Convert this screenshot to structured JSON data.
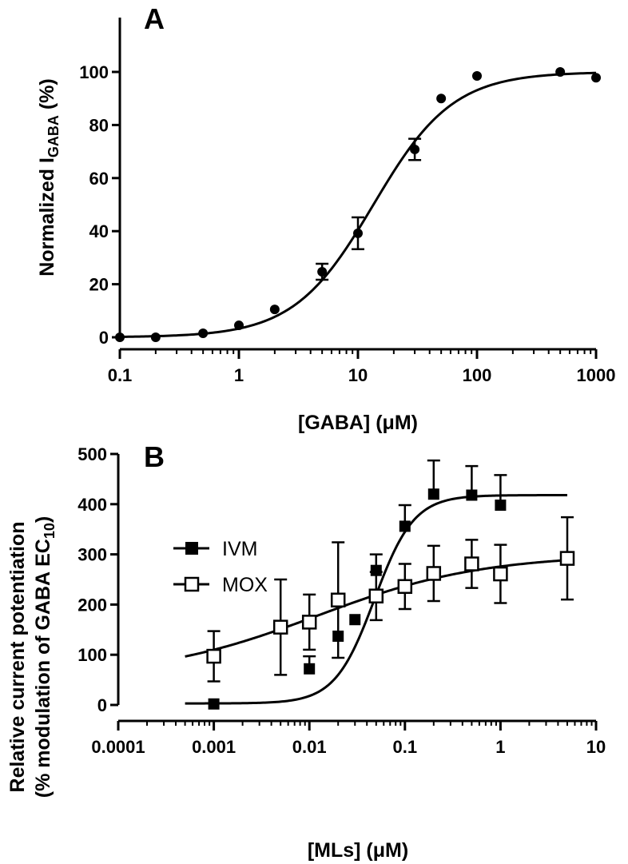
{
  "chart_data": [
    {
      "type": "scatter",
      "panel_label": "A",
      "xlabel": "[GABA] (μM)",
      "ylabel": {
        "main": "Normalized I",
        "sub": "GABA",
        "suffix": " (%)"
      },
      "xscale": "log",
      "xlim": [
        0.1,
        1000
      ],
      "ylim": [
        0,
        100
      ],
      "x_ticks": [
        0.1,
        1,
        10,
        100,
        1000
      ],
      "x_tick_labels": [
        "0.1",
        "1",
        "10",
        "100",
        "1000"
      ],
      "y_ticks": [
        0,
        20,
        40,
        60,
        80,
        100
      ],
      "y_tick_labels": [
        "0",
        "20",
        "40",
        "60",
        "80",
        "100"
      ],
      "grid": false,
      "series": [
        {
          "marker": "filled-circle",
          "x": [
            0.1,
            0.2,
            0.5,
            1,
            2,
            5,
            10,
            30,
            50,
            100,
            500,
            1000
          ],
          "y": [
            0,
            0,
            1.5,
            4.5,
            10.5,
            24.7,
            39.2,
            70.8,
            90,
            98.5,
            100,
            97.8
          ],
          "err": [
            0,
            0,
            0,
            0,
            0,
            3,
            6,
            4,
            0,
            0,
            0,
            0
          ],
          "fit": {
            "model": "hill",
            "bottom": 0,
            "top": 100,
            "ec50": 13.5,
            "hill": 1.3
          }
        }
      ]
    },
    {
      "type": "scatter",
      "panel_label": "B",
      "xlabel": "[MLs] (μM)",
      "ylabel": {
        "line1": "Relative current potentiation",
        "line2_main": "(% modulation of GABA EC",
        "line2_sub": "10",
        "line2_suffix": ")"
      },
      "xscale": "log",
      "xlim": [
        0.0001,
        10
      ],
      "ylim": [
        0,
        500
      ],
      "x_ticks": [
        0.0001,
        0.001,
        0.01,
        0.1,
        1,
        10
      ],
      "x_tick_labels": [
        "0.0001",
        "0.001",
        "0.01",
        "0.1",
        "1",
        "10"
      ],
      "y_ticks": [
        0,
        100,
        200,
        300,
        400,
        500
      ],
      "y_tick_labels": [
        "0",
        "100",
        "200",
        "300",
        "400",
        "500"
      ],
      "grid": false,
      "legend_position": "middle-left",
      "series": [
        {
          "name": "IVM",
          "marker": "filled-square",
          "x": [
            0.001,
            0.01,
            0.02,
            0.03,
            0.05,
            0.1,
            0.2,
            0.5,
            1
          ],
          "y": [
            2,
            72,
            137,
            170,
            268,
            356,
            420,
            418,
            398
          ],
          "err": [
            0,
            25,
            0,
            0,
            32,
            42,
            67,
            58,
            60
          ],
          "fit": {
            "model": "hill",
            "bottom": 3,
            "top": 418,
            "ec50": 0.048,
            "hill": 2.1
          }
        },
        {
          "name": "MOX",
          "marker": "open-square",
          "x": [
            0.001,
            0.005,
            0.01,
            0.02,
            0.05,
            0.1,
            0.2,
            0.5,
            1,
            5
          ],
          "y": [
            97,
            155,
            165,
            209,
            217,
            236,
            262,
            281,
            261,
            292
          ],
          "err": [
            50,
            95,
            55,
            115,
            48,
            45,
            55,
            48,
            58,
            82
          ],
          "fit": {
            "model": "hill",
            "bottom": 55,
            "top": 300,
            "ec50": 0.012,
            "hill": 0.5
          }
        }
      ]
    }
  ]
}
